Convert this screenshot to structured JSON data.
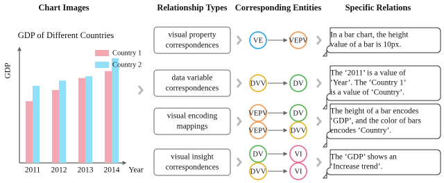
{
  "headers": [
    "Chart Images",
    "Relationship Types",
    "Corresponding Entities",
    "Specific Relations"
  ],
  "chart": {
    "title": "GDP of Different Countries",
    "y_label": "GDP",
    "x_label": "Year",
    "categories": [
      "2011",
      "2012",
      "2013",
      "2014"
    ],
    "series": [
      {
        "name": "Country 1",
        "color": "#f4a7b3",
        "values": [
          72,
          85,
          99,
          107
        ]
      },
      {
        "name": "Country 2",
        "color": "#8fe0f8",
        "values": [
          90,
          96,
          101,
          122
        ]
      }
    ],
    "ylim": [
      0,
      135
    ]
  },
  "rows": [
    {
      "type": [
        "visual property",
        "correspondences"
      ],
      "pairs": [
        [
          {
            "label": "VE",
            "color": "#3aa8e8"
          },
          {
            "label": "VEPV",
            "color": "#f0a060"
          }
        ]
      ],
      "relation": [
        "In a bar chart, the height",
        "value of a bar is 10px."
      ]
    },
    {
      "type": [
        "data variable",
        "correspondences"
      ],
      "pairs": [
        [
          {
            "label": "DVV",
            "color": "#e8b830"
          },
          {
            "label": "DV",
            "color": "#5cb85c"
          }
        ]
      ],
      "relation": [
        "The ‘2011’ is a value of",
        "‘Year’. The ‘Country 1’",
        "is a value of  ‘Country’."
      ]
    },
    {
      "type": [
        "visual encoding",
        "mappings"
      ],
      "pairs": [
        [
          {
            "label": "VEPV",
            "color": "#f0a060"
          },
          {
            "label": "DV",
            "color": "#5cb85c"
          }
        ],
        [
          {
            "label": "VEPV",
            "color": "#f0a060"
          },
          {
            "label": "DVV",
            "color": "#e8b830"
          }
        ]
      ],
      "relation": [
        "The height of a bar encodes",
        "‘GDP’, and the color of bars",
        "encodes ‘Country’."
      ]
    },
    {
      "type": [
        "visual insight",
        "correspondences"
      ],
      "pairs": [
        [
          {
            "label": "DV",
            "color": "#5cb85c"
          },
          {
            "label": "VI",
            "color": "#e8709a"
          }
        ],
        [
          {
            "label": "DVV",
            "color": "#e8b830"
          },
          {
            "label": "VI",
            "color": "#e8709a"
          }
        ]
      ],
      "relation": [
        "The ‘GDP’ shows an",
        "‘Increase trend’."
      ]
    }
  ]
}
